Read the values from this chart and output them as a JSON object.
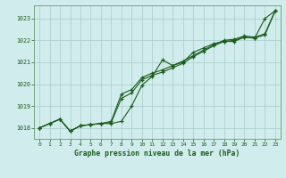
{
  "title": "Graphe pression niveau de la mer (hPa)",
  "bg_color": "#d0ecec",
  "plot_bg_color": "#d0ecec",
  "grid_color": "#aacccc",
  "line_color": "#1a5c1a",
  "marker_color": "#1a5c1a",
  "label_color": "#1a5c1a",
  "xlim": [
    -0.5,
    23.5
  ],
  "ylim": [
    1017.5,
    1023.6
  ],
  "yticks": [
    1018,
    1019,
    1020,
    1021,
    1022,
    1023
  ],
  "xticks": [
    0,
    1,
    2,
    3,
    4,
    5,
    6,
    7,
    8,
    9,
    10,
    11,
    12,
    13,
    14,
    15,
    16,
    17,
    18,
    19,
    20,
    21,
    22,
    23
  ],
  "series1": [
    1018.0,
    1018.2,
    1018.4,
    1017.85,
    1018.1,
    1018.15,
    1018.2,
    1018.2,
    1018.3,
    1019.0,
    1019.95,
    1020.35,
    1021.1,
    1020.85,
    1021.0,
    1021.45,
    1021.65,
    1021.85,
    1021.95,
    1021.95,
    1022.15,
    1022.1,
    1023.0,
    1023.35
  ],
  "series2": [
    1018.0,
    1018.2,
    1018.4,
    1017.85,
    1018.1,
    1018.15,
    1018.2,
    1018.25,
    1019.35,
    1019.6,
    1020.2,
    1020.4,
    1020.55,
    1020.75,
    1020.95,
    1021.25,
    1021.5,
    1021.75,
    1021.95,
    1022.0,
    1022.15,
    1022.1,
    1022.25,
    1023.35
  ],
  "series3": [
    1018.0,
    1018.2,
    1018.4,
    1017.85,
    1018.1,
    1018.15,
    1018.2,
    1018.3,
    1019.55,
    1019.75,
    1020.3,
    1020.5,
    1020.65,
    1020.85,
    1021.05,
    1021.3,
    1021.55,
    1021.8,
    1022.0,
    1022.05,
    1022.2,
    1022.15,
    1022.3,
    1023.35
  ]
}
